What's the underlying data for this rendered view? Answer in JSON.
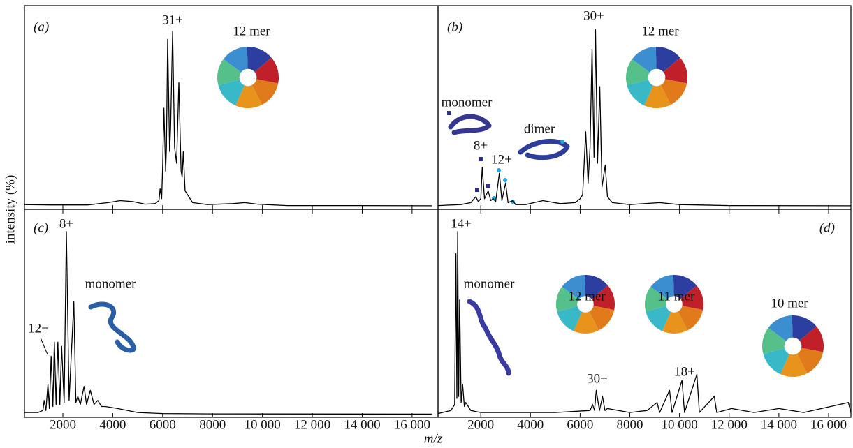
{
  "y_label": "intensity (%)",
  "x_label": "m/z",
  "chart_data": [
    {
      "type": "line",
      "panel": "(a)",
      "color": "#000000",
      "xlim": [
        460,
        17040
      ],
      "ylim": [
        0,
        100
      ],
      "xticks": [
        2000,
        4000,
        6000,
        8000,
        10000,
        12000,
        14000,
        16000
      ],
      "annotations": [
        "31+",
        "12 mer"
      ],
      "x": [
        460,
        1500,
        3000,
        3800,
        4300,
        4800,
        5300,
        5700,
        5850,
        5900,
        5960,
        6000,
        6050,
        6120,
        6150,
        6200,
        6280,
        6320,
        6400,
        6480,
        6560,
        6650,
        6740,
        6780,
        6830,
        6900,
        7000,
        7200,
        7800,
        8800,
        9300,
        9800,
        11000,
        13000,
        16800
      ],
      "values": [
        1,
        0.8,
        0.8,
        2,
        3,
        2.5,
        1.2,
        1.5,
        3,
        9,
        4,
        20,
        50,
        18,
        30,
        85,
        28,
        40,
        89,
        30,
        22,
        63,
        18,
        15,
        28,
        8,
        6,
        2,
        1,
        1.5,
        2,
        1.2,
        0.5,
        0.5,
        0.4
      ]
    },
    {
      "type": "line",
      "panel": "(b)",
      "color": "#000000",
      "xlim": [
        280,
        16900
      ],
      "ylim": [
        0,
        100
      ],
      "xticks": [
        2000,
        4000,
        6000,
        8000,
        10000,
        12000,
        14000,
        16000
      ],
      "annotations": [
        "30+",
        "12 mer",
        "monomer",
        "dimer",
        "8+",
        "12+"
      ],
      "x": [
        280,
        1200,
        1600,
        1800,
        1900,
        2000,
        2060,
        2150,
        2300,
        2400,
        2500,
        2600,
        2750,
        2850,
        3000,
        3100,
        3300,
        3400,
        3800,
        4500,
        5200,
        5800,
        6000,
        6100,
        6225,
        6320,
        6400,
        6480,
        6560,
        6620,
        6700,
        6790,
        6880,
        7010,
        7100,
        7300,
        8000,
        9200,
        10000,
        12000,
        16900
      ],
      "values": [
        0.5,
        1,
        2,
        5,
        2.5,
        4,
        20,
        4,
        8,
        3,
        4,
        2.5,
        17,
        3,
        12,
        2,
        3,
        1,
        1,
        3,
        1.5,
        2,
        4,
        6,
        38,
        12,
        30,
        80,
        25,
        90,
        22,
        61,
        10,
        21,
        5,
        2,
        1,
        2,
        1,
        0.5,
        0.4
      ]
    },
    {
      "type": "line",
      "panel": "(c)",
      "color": "#000000",
      "xlim": [
        460,
        17040
      ],
      "ylim": [
        0,
        100
      ],
      "xticks": [
        2000,
        {
          "value": 4000,
          "label": "4000"
        },
        6000,
        8000,
        {
          "value": 10000,
          "label": "10 000"
        },
        {
          "value": 12000,
          "label": "12 000"
        },
        {
          "value": 14000,
          "label": "14 000"
        },
        {
          "value": 16000,
          "label": "16 000"
        }
      ],
      "annotations": [
        "8+",
        "12+",
        "monomer"
      ],
      "x": [
        460,
        1000,
        1200,
        1250,
        1320,
        1400,
        1460,
        1530,
        1600,
        1660,
        1730,
        1800,
        1880,
        1950,
        2050,
        2140,
        2250,
        2440,
        2520,
        2600,
        2700,
        2850,
        2950,
        3100,
        3250,
        3400,
        3550,
        3700,
        4200,
        5000,
        6000,
        8000,
        16800
      ],
      "values": [
        1,
        1,
        2,
        7,
        2,
        15,
        3,
        29,
        4,
        36,
        5,
        36,
        5,
        34,
        6,
        91,
        7,
        56,
        6,
        9,
        5,
        14,
        5,
        12,
        5,
        7,
        4,
        4,
        3,
        1,
        0.5,
        0.3,
        0.2
      ]
    },
    {
      "type": "line",
      "panel": "(d)",
      "color": "#000000",
      "xlim": [
        280,
        16900
      ],
      "ylim": [
        0,
        100
      ],
      "xticks": [
        2000,
        4000,
        6000,
        8000,
        {
          "value": 10000,
          "label": "10 000"
        },
        {
          "value": 12000,
          "label": "12 000"
        },
        {
          "value": 14000,
          "label": "14 000"
        },
        {
          "value": 16000,
          "label": "16 000"
        }
      ],
      "annotations": [
        "14+",
        "monomer",
        "12 mer",
        "11 mer",
        "10 mer",
        "30+",
        "18+"
      ],
      "x": [
        280,
        800,
        950,
        1000,
        1040,
        1070,
        1110,
        1150,
        1210,
        1270,
        1340,
        1400,
        1600,
        2000,
        3000,
        5000,
        6400,
        6500,
        6580,
        6650,
        6780,
        6900,
        7000,
        7100,
        8000,
        8700,
        9100,
        9200,
        9600,
        9700,
        10100,
        10200,
        10700,
        10800,
        11400,
        11500,
        12100,
        13000,
        14000,
        15000,
        16800,
        16900
      ],
      "values": [
        0.5,
        2,
        5,
        80,
        8,
        91,
        9,
        57,
        6,
        15,
        4,
        6,
        2,
        1,
        1,
        1,
        2,
        5,
        2,
        12,
        2,
        9,
        2,
        3,
        1,
        2,
        6,
        1,
        12,
        1,
        17,
        1,
        20,
        1,
        9,
        1,
        3,
        1,
        3,
        1,
        6,
        1
      ]
    }
  ]
}
